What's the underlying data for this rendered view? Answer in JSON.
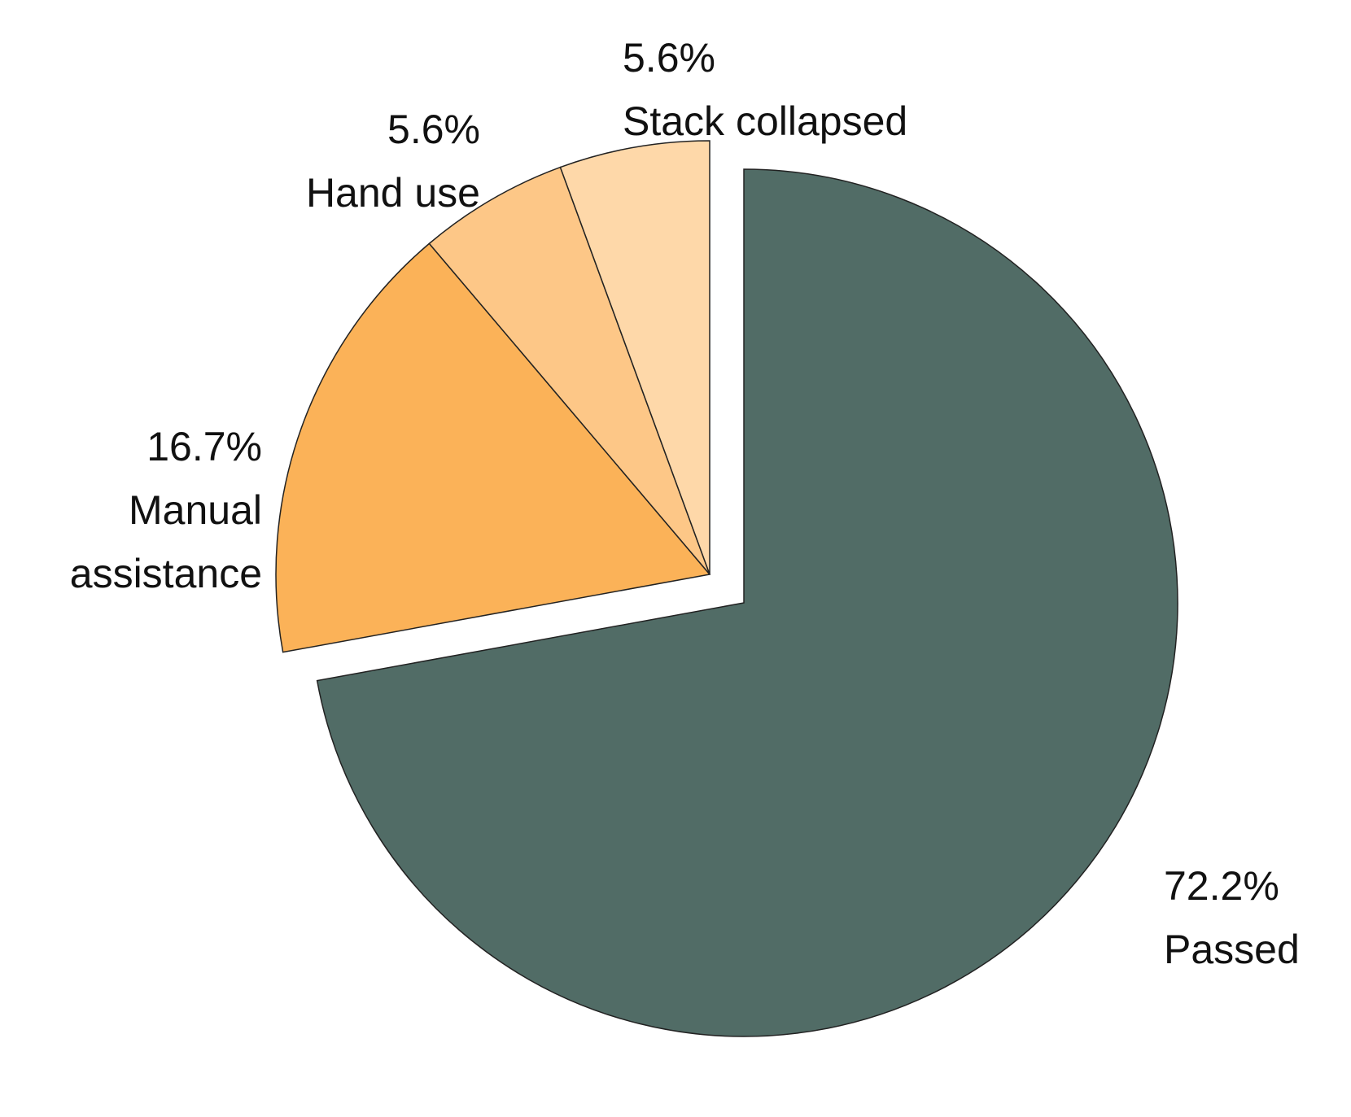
{
  "chart_data": {
    "type": "pie",
    "categories": [
      "Passed",
      "Manual assistance",
      "Hand use",
      "Stack collapsed"
    ],
    "values": [
      72.2,
      16.7,
      5.6,
      5.6
    ],
    "value_labels": [
      "72.2%",
      "16.7%",
      "5.6%",
      "5.6%"
    ],
    "colors": [
      "#516c66",
      "#fbb258",
      "#fdc787",
      "#fed8a9"
    ]
  }
}
